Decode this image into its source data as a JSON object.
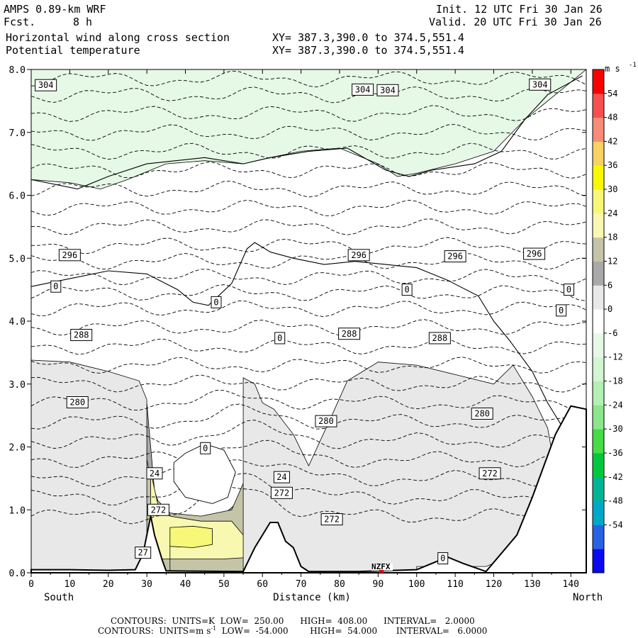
{
  "header": {
    "model": "AMPS 0.89-km WRF",
    "fcst_label": "Fcst.",
    "fcst_value": "8 h",
    "title_line1": "Horizontal wind along cross section",
    "title_line2": "Potential temperature",
    "xy_line1": "XY= 387.3,390.0 to 374.5,551.4",
    "xy_line2": "XY= 387.3,390.0 to 374.5,551.4",
    "init": "Init. 12 UTC Fri 30 Jan 26",
    "valid": "Valid. 20 UTC Fri 30 Jan 26"
  },
  "footer": {
    "line1": "CONTOURS:  UNITS=K  LOW=  250.00      HIGH=  408.00      INTERVAL=   2.0000",
    "line2_prefix": "CONTOURS:  UNITS=m s",
    "line2_sup": "-1",
    "line2_rest": "  LOW=  -54.000        HIGH=  54.000       INTERVAL=   6.0000"
  },
  "chart_data": {
    "type": "heatmap",
    "xlabel": "Distance (km)",
    "x_end_left": "South",
    "x_end_right": "North",
    "xlim": [
      0,
      144
    ],
    "ylim": [
      0,
      8
    ],
    "x_ticks": [
      "0",
      "10",
      "20",
      "30",
      "40",
      "50",
      "60",
      "70",
      "80",
      "90",
      "100",
      "110",
      "120",
      "130",
      "140"
    ],
    "y_ticks": [
      "0.0",
      "1.0",
      "2.0",
      "3.0",
      "4.0",
      "5.0",
      "6.0",
      "7.0",
      "8.0"
    ],
    "colorbar": {
      "units": "m s",
      "units_sup": "-1",
      "levels": [
        -60,
        -54,
        -48,
        -42,
        -36,
        -30,
        -24,
        -18,
        -12,
        -6,
        0,
        6,
        12,
        18,
        24,
        30,
        36,
        42,
        48,
        54,
        60
      ],
      "tick_labels": [
        "54",
        "48",
        "42",
        "36",
        "30",
        "24",
        "18",
        "12",
        "6",
        "0",
        "-6",
        "-12",
        "-18",
        "-24",
        "-30",
        "-36",
        "-42",
        "-48",
        "-54"
      ],
      "colors_low_to_high": [
        "#0a0af0",
        "#2a62e6",
        "#00a8c8",
        "#00b496",
        "#00c83c",
        "#46dc46",
        "#8ce68c",
        "#b4f0b4",
        "#d2f5d2",
        "#e6f8e6",
        "#ffffff",
        "#e8e8e8",
        "#a9a9a9",
        "#c4c4a8",
        "#f8f8b0",
        "#f8f878",
        "#f8f800",
        "#f8d264",
        "#f88c78",
        "#f85050",
        "#f80000"
      ]
    },
    "wind_bands": [
      {
        "level": "12-18",
        "color": "#a9a9a9",
        "upper": [
          [
            0,
            2.75
          ],
          [
            10,
            2.78
          ],
          [
            20,
            2.85
          ],
          [
            28,
            2.95
          ],
          [
            30,
            2.7
          ],
          [
            32,
            1.3
          ],
          [
            34,
            0.95
          ],
          [
            40,
            0.85
          ],
          [
            48,
            0.82
          ],
          [
            55,
            1.2
          ],
          [
            58,
            1.9
          ],
          [
            60,
            2.4
          ],
          [
            63,
            2.35
          ],
          [
            68,
            1.9
          ],
          [
            72,
            1.3
          ],
          [
            76,
            1.6
          ],
          [
            80,
            2.15
          ],
          [
            90,
            2.2
          ],
          [
            100,
            2.3
          ],
          [
            110,
            2.3
          ],
          [
            122,
            2.2
          ],
          [
            126,
            1.6
          ],
          [
            128,
            1.4
          ],
          [
            127,
            0.9
          ],
          [
            120,
            0.65
          ],
          [
            110,
            0.45
          ],
          [
            100,
            0.35
          ],
          [
            90,
            0.28
          ],
          [
            80,
            0.25
          ],
          [
            76,
            0.18
          ]
        ],
        "lower": [
          [
            0,
            1.0
          ],
          [
            10,
            1.1
          ],
          [
            20,
            1.2
          ],
          [
            26,
            1.35
          ],
          [
            30,
            1.0
          ]
        ]
      },
      {
        "level": "18-24",
        "color": "#c4c4a8",
        "upper": [
          [
            30,
            1.8
          ],
          [
            32,
            1.2
          ],
          [
            36,
            0.95
          ],
          [
            44,
            0.9
          ],
          [
            52,
            1.0
          ],
          [
            57,
            1.7
          ],
          [
            60,
            2.1
          ],
          [
            63,
            1.95
          ],
          [
            67,
            1.4
          ],
          [
            71,
            1.1
          ],
          [
            76,
            1.5
          ],
          [
            80,
            1.8
          ],
          [
            95,
            1.85
          ],
          [
            110,
            1.85
          ],
          [
            118,
            1.7
          ],
          [
            122,
            1.45
          ],
          [
            122,
            1.05
          ],
          [
            110,
            0.85
          ],
          [
            95,
            0.6
          ],
          [
            85,
            0.45
          ],
          [
            78,
            0.38
          ],
          [
            76,
            0.3
          ]
        ],
        "lower": []
      },
      {
        "level": "24-30",
        "color": "#f8f8b0",
        "upper": [
          [
            31,
            1.6
          ],
          [
            33,
            1.05
          ],
          [
            36,
            0.9
          ],
          [
            44,
            0.82
          ],
          [
            52,
            0.82
          ],
          [
            55,
            0.6
          ],
          [
            58,
            0.25
          ],
          [
            50,
            0.22
          ],
          [
            40,
            0.22
          ],
          [
            33,
            0.22
          ]
        ],
        "lower": []
      },
      {
        "level": "24-30",
        "color": "#f8f8b0",
        "upper": [
          [
            62,
            1.55
          ],
          [
            65,
            1.55
          ],
          [
            68,
            1.1
          ],
          [
            72,
            0.75
          ],
          [
            76,
            0.5
          ],
          [
            75,
            0.15
          ],
          [
            72,
            0.1
          ],
          [
            69,
            0.5
          ],
          [
            65,
            0.9
          ],
          [
            62,
            1.2
          ]
        ],
        "lower": []
      },
      {
        "level": "30-36",
        "color": "#f8f878",
        "upper": [
          [
            36,
            0.72
          ],
          [
            42,
            0.74
          ],
          [
            47,
            0.7
          ],
          [
            47,
            0.45
          ],
          [
            42,
            0.4
          ],
          [
            36,
            0.42
          ]
        ],
        "lower": []
      },
      {
        "level": "30-36",
        "color": "#f8f878",
        "upper": [
          [
            64,
            1.2
          ],
          [
            66,
            1.15
          ],
          [
            70,
            0.75
          ],
          [
            73,
            0.5
          ],
          [
            72,
            0.3
          ],
          [
            69,
            0.5
          ],
          [
            65,
            0.9
          ]
        ],
        "lower": []
      },
      {
        "level": "6-12",
        "color": "#e8e8e8",
        "upper": [
          [
            0,
            3.38
          ],
          [
            10,
            3.35
          ],
          [
            20,
            3.2
          ],
          [
            28,
            3.05
          ],
          [
            30,
            2.75
          ]
        ],
        "lower": []
      },
      {
        "level": "6-12",
        "color": "#e8e8e8",
        "upper": [
          [
            55,
            3.1
          ],
          [
            58,
            3.0
          ],
          [
            60,
            2.7
          ],
          [
            63,
            2.6
          ],
          [
            68,
            2.2
          ],
          [
            72,
            1.7
          ],
          [
            78,
            2.5
          ],
          [
            82,
            3.05
          ],
          [
            90,
            3.35
          ],
          [
            100,
            3.3
          ],
          [
            110,
            3.15
          ],
          [
            120,
            3.0
          ],
          [
            125,
            3.3
          ],
          [
            130,
            2.8
          ],
          [
            134,
            2.3
          ],
          [
            136,
            1.6
          ],
          [
            130,
            0.6
          ],
          [
            124,
            0.25
          ],
          [
            118,
            0.1
          ],
          [
            100,
            0.1
          ]
        ],
        "lower": []
      },
      {
        "level": "-12--6",
        "color": "#e6f8e6",
        "upper": [
          [
            0,
            6.25
          ],
          [
            10,
            6.2
          ],
          [
            18,
            6.1
          ],
          [
            25,
            6.25
          ],
          [
            35,
            6.5
          ],
          [
            45,
            6.55
          ],
          [
            55,
            6.5
          ],
          [
            62,
            6.6
          ],
          [
            70,
            6.7
          ],
          [
            80,
            6.75
          ],
          [
            90,
            6.5
          ],
          [
            95,
            6.3
          ],
          [
            100,
            6.35
          ],
          [
            110,
            6.5
          ],
          [
            120,
            6.7
          ],
          [
            128,
            7.2
          ],
          [
            134,
            7.5
          ],
          [
            140,
            7.8
          ],
          [
            144,
            8.0
          ],
          [
            144,
            8.0
          ],
          [
            0,
            8.0
          ]
        ],
        "lower": []
      }
    ],
    "terrain_profile": [
      [
        0,
        0.05
      ],
      [
        10,
        0.05
      ],
      [
        20,
        0.04
      ],
      [
        27,
        0.05
      ],
      [
        29,
        0.3
      ],
      [
        31,
        0.9
      ],
      [
        32,
        0.6
      ],
      [
        34,
        0.2
      ],
      [
        35,
        0.03
      ],
      [
        55,
        0.02
      ],
      [
        58,
        0.4
      ],
      [
        62,
        0.8
      ],
      [
        64,
        0.8
      ],
      [
        66,
        0.5
      ],
      [
        68,
        0.4
      ],
      [
        70,
        0.1
      ],
      [
        72,
        0.02
      ],
      [
        85,
        0.02
      ],
      [
        100,
        0.05
      ],
      [
        108,
        0.25
      ],
      [
        112,
        0.15
      ],
      [
        118,
        0.02
      ],
      [
        126,
        0.6
      ],
      [
        130,
        1.2
      ],
      [
        136,
        2.2
      ],
      [
        140,
        2.65
      ],
      [
        144,
        2.6
      ]
    ],
    "theta_labels": [
      "304",
      "304",
      "304",
      "304",
      "296",
      "296",
      "296",
      "296",
      "288",
      "288",
      "288",
      "280",
      "280",
      "280",
      "272",
      "272",
      "272",
      "272",
      "27"
    ],
    "wind_labels": [
      "0",
      "0",
      "0",
      "0",
      "0",
      "0",
      "0",
      "0",
      "24",
      "24"
    ],
    "station_label": "NZFX"
  }
}
